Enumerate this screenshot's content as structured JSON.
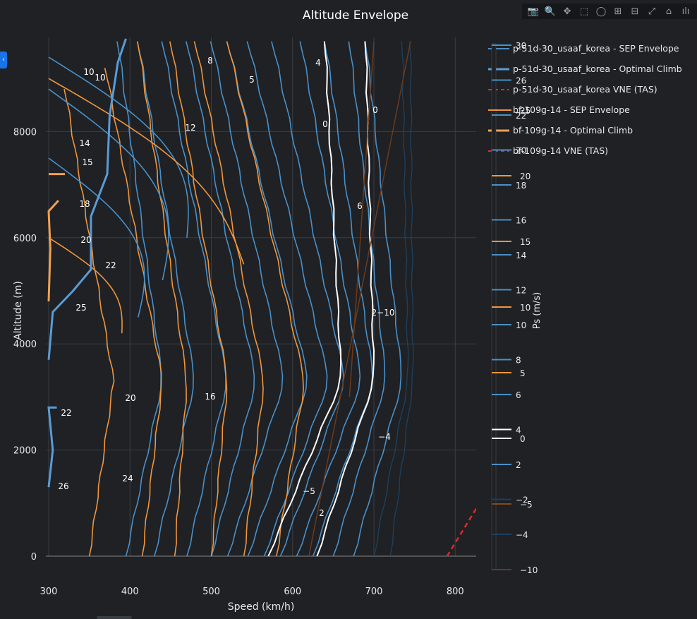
{
  "title": "Altitude Envelope",
  "modebar": [
    {
      "name": "camera-icon",
      "glyph": "📷"
    },
    {
      "name": "zoom-icon",
      "glyph": "🔍"
    },
    {
      "name": "pan-icon",
      "glyph": "✥"
    },
    {
      "name": "box-select-icon",
      "glyph": "⬚"
    },
    {
      "name": "lasso-select-icon",
      "glyph": "◯"
    },
    {
      "name": "zoom-in-icon",
      "glyph": "⊞"
    },
    {
      "name": "zoom-out-icon",
      "glyph": "⊟"
    },
    {
      "name": "autoscale-icon",
      "glyph": "⤢"
    },
    {
      "name": "home-icon",
      "glyph": "⌂"
    },
    {
      "name": "plotly-logo-icon",
      "glyph": "ılı"
    }
  ],
  "colors": {
    "background": "#1f2125",
    "grid": "#3a3d42",
    "blue": "#4a90c8",
    "orange": "#f0963c",
    "white": "#ffffff",
    "red": "#dc2a2a",
    "dark_blue": "#1f3f5a",
    "brown": "#6b3a1a"
  },
  "chart_data": {
    "type": "contour",
    "title": "Altitude Envelope",
    "xlabel": "Speed (km/h)",
    "ylabel": "Altitude (m)",
    "xlim": [
      290,
      828
    ],
    "ylim": [
      -150,
      9750
    ],
    "xticks": [
      300,
      400,
      500,
      600,
      700,
      800
    ],
    "yticks": [
      0,
      2000,
      4000,
      6000,
      8000
    ],
    "grid": true,
    "legend_position": "top-right",
    "legend": [
      {
        "label": "p-51d-30_usaaf_korea - SEP Envelope",
        "color": "#4a90c8",
        "style": "solid"
      },
      {
        "label": "p-51d-30_usaaf_korea - Optimal Climb",
        "color": "#5b9bd5",
        "style": "thick"
      },
      {
        "label": "p-51d-30_usaaf_korea VNE (TAS)",
        "color": "#dc2a2a",
        "style": "dash"
      },
      {
        "label": "bf-109g-14 - SEP Envelope",
        "color": "#f0963c",
        "style": "solid"
      },
      {
        "label": "bf-109g-14 - Optimal Climb",
        "color": "#f0a050",
        "style": "thick"
      },
      {
        "label": "bf-109g-14 VNE (TAS)",
        "color": "#dc2a2a",
        "style": "dash"
      }
    ],
    "colorbar": {
      "title": "Ps (m/s)",
      "ticks_blue": [
        "30",
        "26",
        "22",
        "20",
        "18",
        "16",
        "14",
        "12",
        "10",
        "8",
        "6",
        "4",
        "2",
        "−2",
        "−4"
      ],
      "ticks_orange": [
        "25",
        "20",
        "15",
        "10",
        "5",
        "0",
        "−5",
        "−10"
      ]
    },
    "series": [
      {
        "name": "bf-109g-14 VNE (TAS)",
        "x": [
          790,
          828
        ],
        "y": [
          0,
          950
        ]
      }
    ],
    "annotations": [
      "8",
      "5",
      "4",
      "10",
      "10",
      "12",
      "14",
      "15",
      "18",
      "0",
      "0",
      "6",
      "20",
      "22",
      "25",
      "2−10",
      "20",
      "16",
      "22",
      "26",
      "24",
      "−4",
      "−5",
      "2"
    ]
  }
}
